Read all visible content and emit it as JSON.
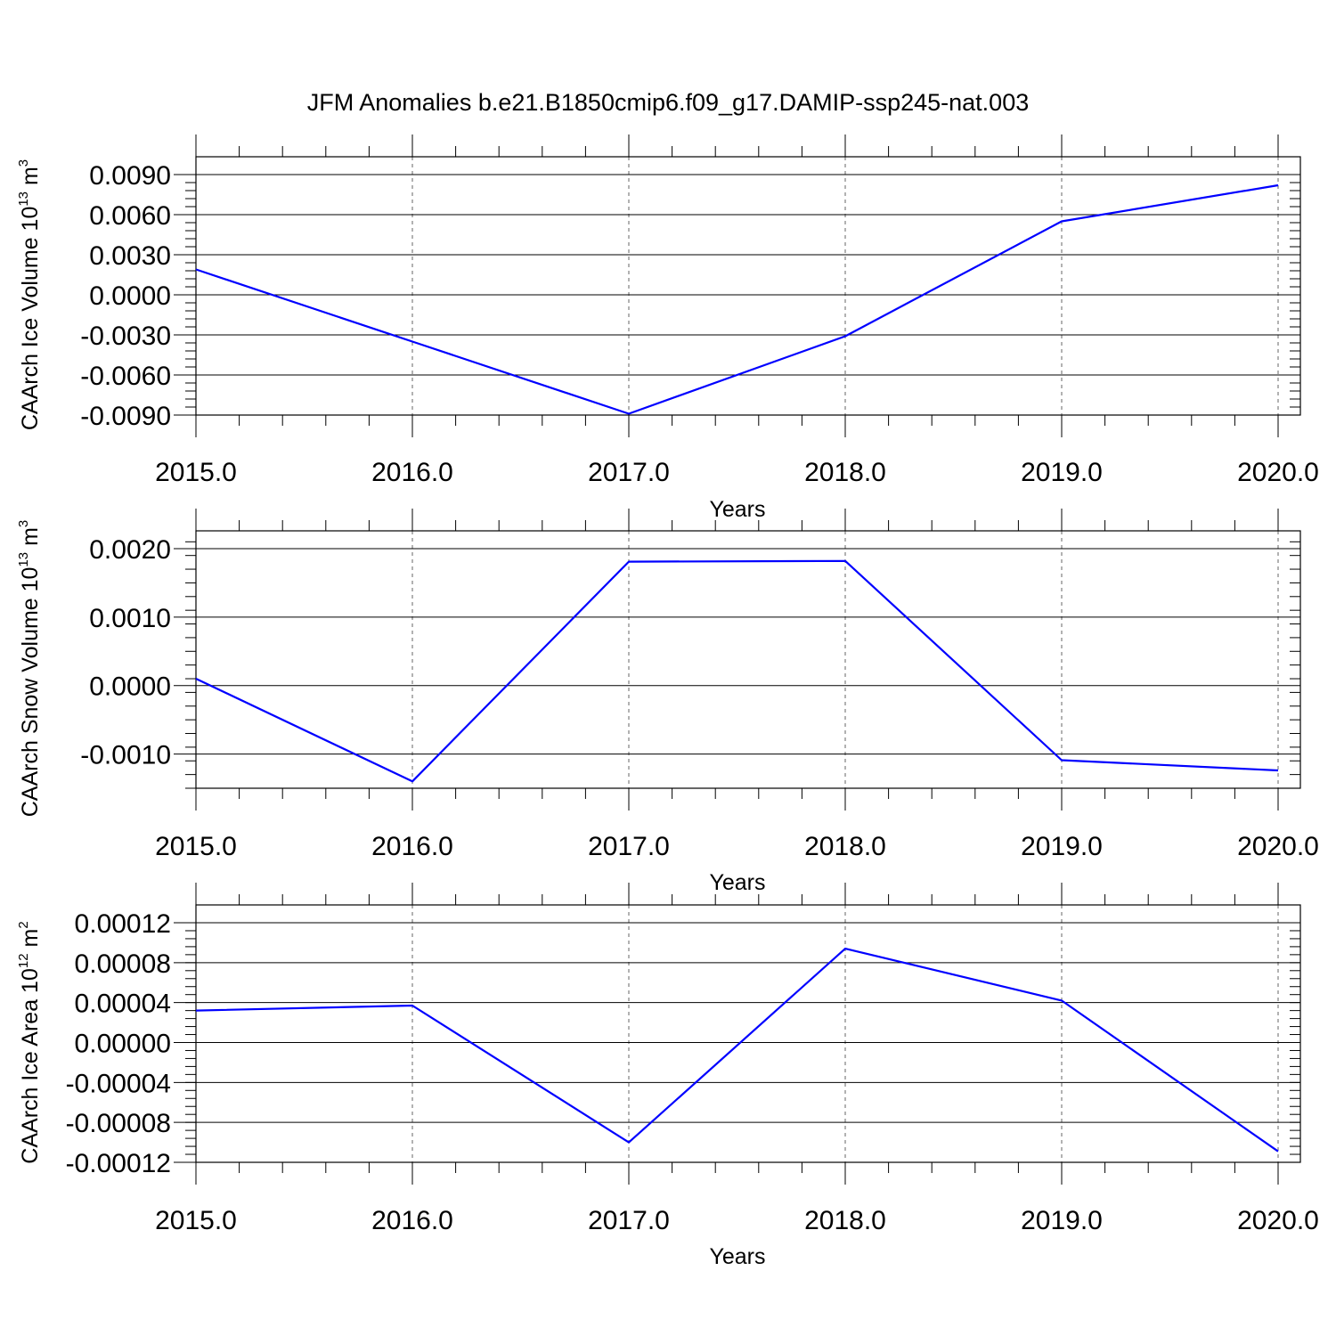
{
  "figure": {
    "title": "JFM Anomalies b.e21.B1850cmip6.f09_g17.DAMIP-ssp245-nat.003",
    "line_color": "#0000ff"
  },
  "chart_data": [
    {
      "type": "line",
      "title": "",
      "xlabel": "Years",
      "ylabel": "CAArch Ice Volume 10",
      "ylabel_exp": "13",
      "ylabel_unit": "m",
      "ylabel_unit_exp": "3",
      "xlim": [
        2015,
        2020
      ],
      "ylim": [
        -0.009,
        0.009
      ],
      "x_ticks": [
        2015,
        2016,
        2017,
        2018,
        2019,
        2020
      ],
      "x_tick_labels": [
        "2015.0",
        "2016.0",
        "2017.0",
        "2018.0",
        "2019.0",
        "2020.0"
      ],
      "x_minor": 0.2,
      "y_ticks": [
        -0.009,
        -0.006,
        -0.003,
        0.0,
        0.003,
        0.006,
        0.009
      ],
      "y_tick_labels": [
        "-0.0090",
        "-0.0060",
        "-0.0030",
        "0.0000",
        "0.0030",
        "0.0060",
        "0.0090"
      ],
      "y_minor": 0.0006,
      "grid": "vertical dashed at major x ticks",
      "series": [
        {
          "x": [
            2015,
            2016,
            2017,
            2018,
            2019,
            2020
          ],
          "values": [
            0.0019,
            -0.0035,
            -0.0089,
            -0.0031,
            0.0055,
            0.0082
          ]
        }
      ]
    },
    {
      "type": "line",
      "title": "",
      "xlabel": "Years",
      "ylabel": "CAArch Snow Volume 10",
      "ylabel_exp": "13",
      "ylabel_unit": "m",
      "ylabel_unit_exp": "3",
      "xlim": [
        2015,
        2020
      ],
      "ylim": [
        -0.0015,
        0.002
      ],
      "x_ticks": [
        2015,
        2016,
        2017,
        2018,
        2019,
        2020
      ],
      "x_tick_labels": [
        "2015.0",
        "2016.0",
        "2017.0",
        "2018.0",
        "2019.0",
        "2020.0"
      ],
      "x_minor": 0.2,
      "y_ticks": [
        -0.001,
        0.0,
        0.001,
        0.002
      ],
      "y_tick_labels": [
        "-0.0010",
        "0.0000",
        "0.0010",
        "0.0020"
      ],
      "y_minor": 0.0002,
      "grid": "vertical dashed at major x ticks",
      "series": [
        {
          "x": [
            2015,
            2016,
            2017,
            2018,
            2019,
            2020
          ],
          "values": [
            0.0001,
            -0.0014,
            0.00181,
            0.00182,
            -0.00109,
            -0.00124
          ]
        }
      ]
    },
    {
      "type": "line",
      "title": "",
      "xlabel": "Years",
      "ylabel": "CAArch Ice Area 10",
      "ylabel_exp": "12",
      "ylabel_unit": "m",
      "ylabel_unit_exp": "2",
      "xlim": [
        2015,
        2020
      ],
      "ylim": [
        -0.00012,
        0.00012
      ],
      "x_ticks": [
        2015,
        2016,
        2017,
        2018,
        2019,
        2020
      ],
      "x_tick_labels": [
        "2015.0",
        "2016.0",
        "2017.0",
        "2018.0",
        "2019.0",
        "2020.0"
      ],
      "x_minor": 0.2,
      "y_ticks": [
        -0.00012,
        -8e-05,
        -4e-05,
        0.0,
        4e-05,
        8e-05,
        0.00012
      ],
      "y_tick_labels": [
        "-0.00012",
        "-0.00008",
        "-0.00004",
        "0.00000",
        "0.00004",
        "0.00008",
        "0.00012"
      ],
      "y_minor": 8e-06,
      "grid": "vertical dashed at major x ticks",
      "series": [
        {
          "x": [
            2015,
            2016,
            2017,
            2018,
            2019,
            2020
          ],
          "values": [
            3.2e-05,
            3.7e-05,
            -0.0001,
            9.4e-05,
            4.2e-05,
            -0.000109
          ]
        }
      ]
    }
  ]
}
